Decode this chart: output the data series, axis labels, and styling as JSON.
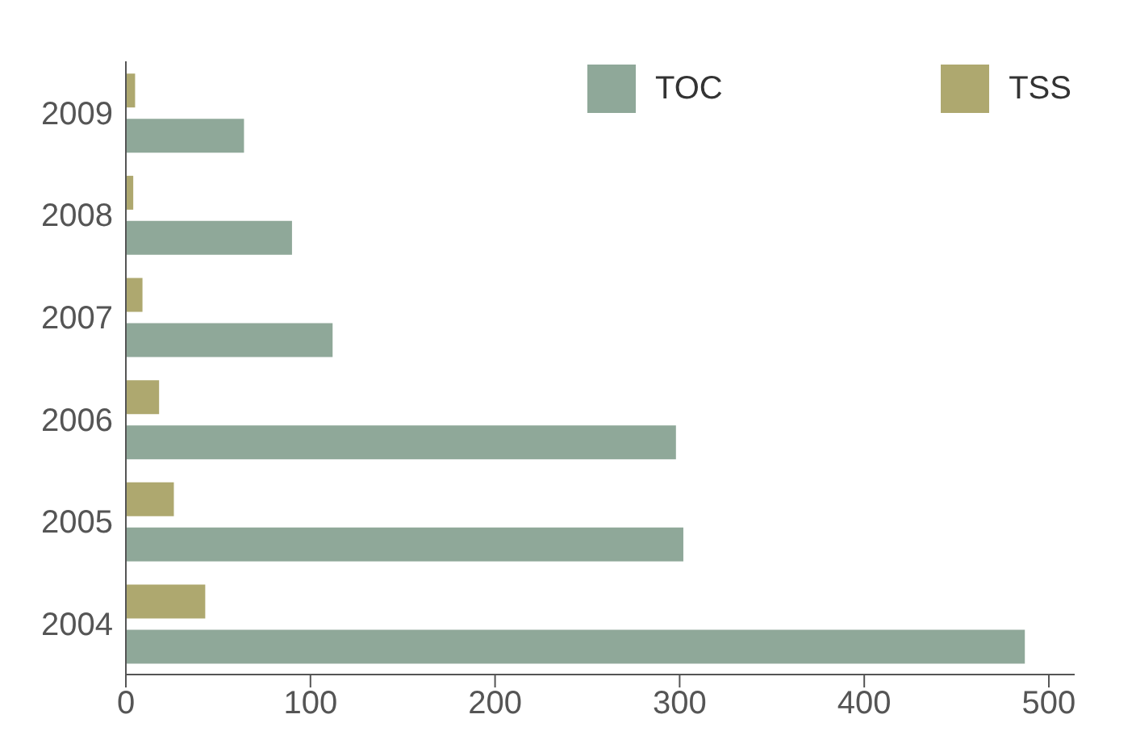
{
  "chart_data": {
    "type": "bar",
    "orientation": "horizontal",
    "categories": [
      "2009",
      "2008",
      "2007",
      "2006",
      "2005",
      "2004"
    ],
    "series": [
      {
        "name": "TOC",
        "color": "#8fa899",
        "values": [
          64,
          90,
          112,
          298,
          302,
          487
        ]
      },
      {
        "name": "TSS",
        "color": "#aea86f",
        "values": [
          5,
          4,
          9,
          18,
          26,
          43
        ]
      }
    ],
    "xlim": [
      0,
      514
    ],
    "xticks": [
      0,
      100,
      200,
      300,
      400,
      500
    ],
    "grid": false,
    "legend": "top right"
  }
}
